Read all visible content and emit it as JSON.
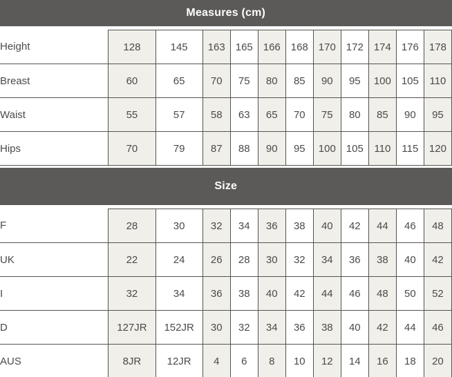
{
  "colors": {
    "header_bar_bg": "#5b5a58",
    "header_bar_text": "#ffffff",
    "grid_border": "#53524f",
    "stripe_cell_bg": "#f0efe9",
    "cell_text": "#4b4a48",
    "page_bg": "#e9e8e5"
  },
  "chart_data": [
    {
      "type": "table",
      "title": "Measures (cm)",
      "rows": [
        {
          "label": "Height",
          "values": [
            128,
            145,
            163,
            165,
            166,
            168,
            170,
            172,
            174,
            176,
            178
          ]
        },
        {
          "label": "Breast",
          "values": [
            60,
            65,
            70,
            75,
            80,
            85,
            90,
            95,
            100,
            105,
            110
          ]
        },
        {
          "label": "Waist",
          "values": [
            55,
            57,
            58,
            63,
            65,
            70,
            75,
            80,
            85,
            90,
            95
          ]
        },
        {
          "label": "Hips",
          "values": [
            70,
            79,
            87,
            88,
            90,
            95,
            100,
            105,
            110,
            115,
            120
          ]
        }
      ]
    },
    {
      "type": "table",
      "title": "Size",
      "rows": [
        {
          "label": "F",
          "values": [
            28,
            30,
            32,
            34,
            36,
            38,
            40,
            42,
            44,
            46,
            48
          ]
        },
        {
          "label": "UK",
          "values": [
            22,
            24,
            26,
            28,
            30,
            32,
            34,
            36,
            38,
            40,
            42
          ]
        },
        {
          "label": "I",
          "values": [
            32,
            34,
            36,
            38,
            40,
            42,
            44,
            46,
            48,
            50,
            52
          ]
        },
        {
          "label": "D",
          "values": [
            "127JR",
            "152JR",
            30,
            32,
            34,
            36,
            38,
            40,
            42,
            44,
            46
          ]
        },
        {
          "label": "AUS",
          "values": [
            "8JR",
            "12JR",
            4,
            6,
            8,
            10,
            12,
            14,
            16,
            18,
            20
          ]
        }
      ]
    }
  ]
}
